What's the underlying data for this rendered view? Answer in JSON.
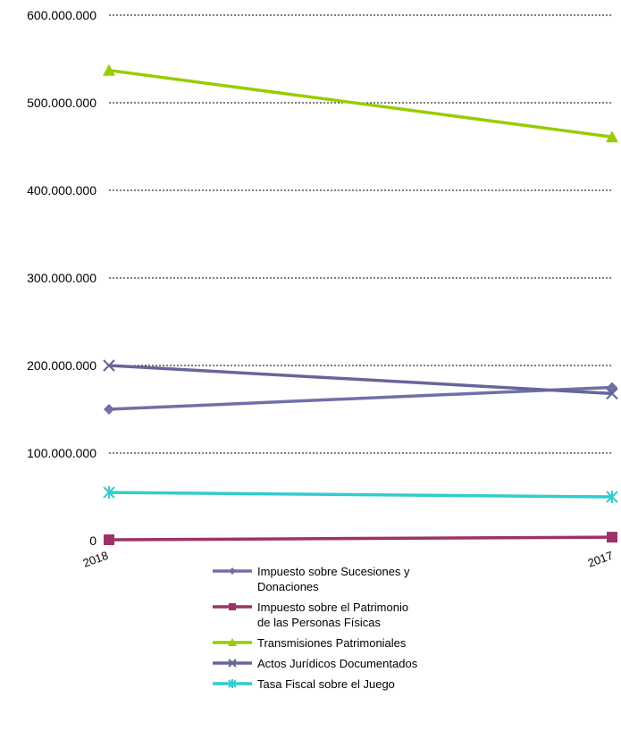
{
  "chart_data": {
    "type": "line",
    "categories": [
      "2018",
      "2017"
    ],
    "ylim": [
      0,
      600000000
    ],
    "y_ticks": [
      {
        "value": 0,
        "label": "0"
      },
      {
        "value": 100000000,
        "label": "100.000.000"
      },
      {
        "value": 200000000,
        "label": "200.000.000"
      },
      {
        "value": 300000000,
        "label": "300.000.000"
      },
      {
        "value": 400000000,
        "label": "400.000.000"
      },
      {
        "value": 500000000,
        "label": "500.000.000"
      },
      {
        "value": 600000000,
        "label": "600.000.000"
      }
    ],
    "grid": "horizontal dashed",
    "legend_position": "bottom",
    "series": [
      {
        "name": "Impuesto sobre Sucesiones y Donaciones",
        "name_lines": [
          "Impuesto sobre Sucesiones y",
          "Donaciones"
        ],
        "values": [
          150000000,
          175000000
        ],
        "color": "#7070a8",
        "marker": "diamond"
      },
      {
        "name": "Impuesto sobre el Patrimonio de las Personas Físicas",
        "name_lines": [
          "Impuesto sobre el Patrimonio",
          "de las Personas Físicas"
        ],
        "values": [
          1000000,
          4000000
        ],
        "color": "#9c3366",
        "marker": "square"
      },
      {
        "name": "Transmisiones Patrimoniales",
        "name_lines": [
          "Transmisiones Patrimoniales"
        ],
        "values": [
          537000000,
          461000000
        ],
        "color": "#99cc00",
        "marker": "triangle"
      },
      {
        "name": "Actos Jurídicos Documentados",
        "name_lines": [
          "Actos Jurídicos Documentados"
        ],
        "values": [
          200000000,
          168000000
        ],
        "color": "#66669a",
        "marker": "x"
      },
      {
        "name": "Tasa Fiscal sobre el Juego",
        "name_lines": [
          "Tasa Fiscal sobre el Juego"
        ],
        "values": [
          55000000,
          50000000
        ],
        "color": "#33cccc",
        "marker": "star"
      }
    ]
  }
}
